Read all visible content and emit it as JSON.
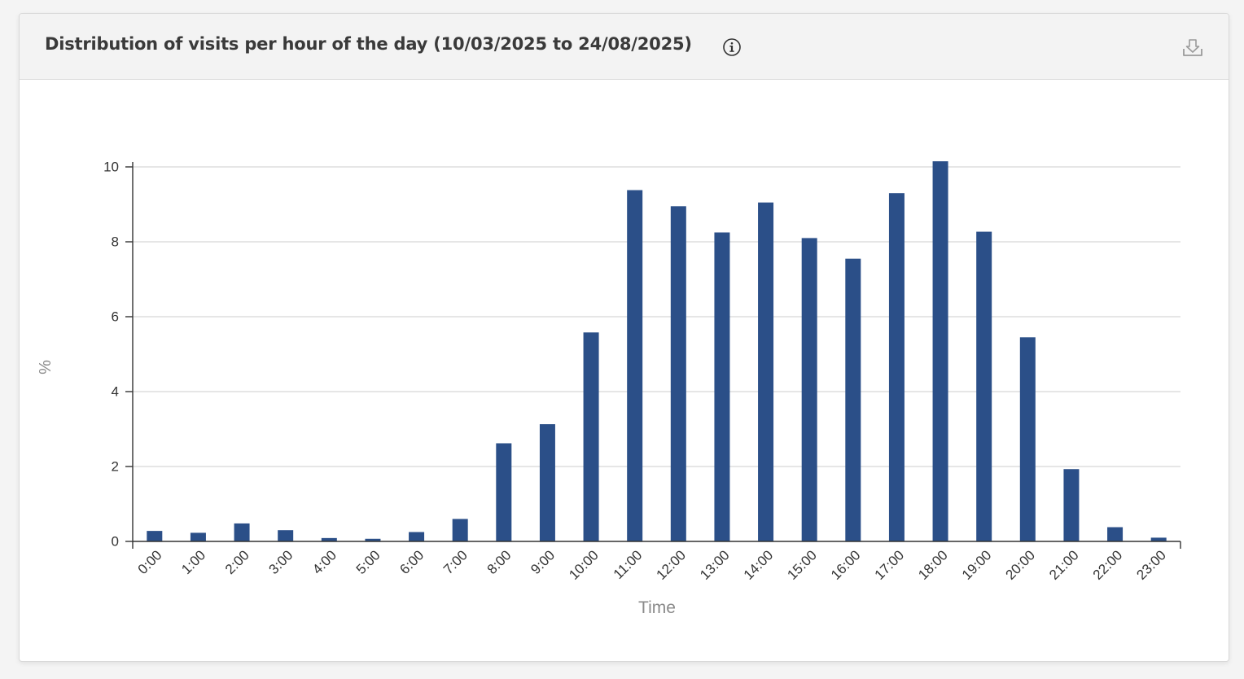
{
  "header": {
    "title": "Distribution of visits per hour of the day (10/03/2025 to 24/08/2025)",
    "info_icon": "info-circle-icon",
    "download_icon": "download-icon"
  },
  "colors": {
    "bar": "#2b4f88",
    "grid": "#d6d6d6",
    "axis": "#333333",
    "tick_text": "#333333",
    "axis_label": "#8a8a8a"
  },
  "chart_data": {
    "type": "bar",
    "title": "Distribution of visits per hour of the day (10/03/2025 to 24/08/2025)",
    "xlabel": "Time",
    "ylabel": "%",
    "ylim": [
      0,
      10
    ],
    "yticks": [
      0,
      2,
      4,
      6,
      8,
      10
    ],
    "grid": true,
    "categories": [
      "0:00",
      "1:00",
      "2:00",
      "3:00",
      "4:00",
      "5:00",
      "6:00",
      "7:00",
      "8:00",
      "9:00",
      "10:00",
      "11:00",
      "12:00",
      "13:00",
      "14:00",
      "15:00",
      "16:00",
      "17:00",
      "18:00",
      "19:00",
      "20:00",
      "21:00",
      "22:00",
      "23:00"
    ],
    "values": [
      0.28,
      0.23,
      0.48,
      0.3,
      0.09,
      0.07,
      0.25,
      0.6,
      2.62,
      3.13,
      5.58,
      9.38,
      8.95,
      8.25,
      9.05,
      8.1,
      7.55,
      9.3,
      10.15,
      8.27,
      5.45,
      1.93,
      0.38,
      0.1
    ]
  }
}
